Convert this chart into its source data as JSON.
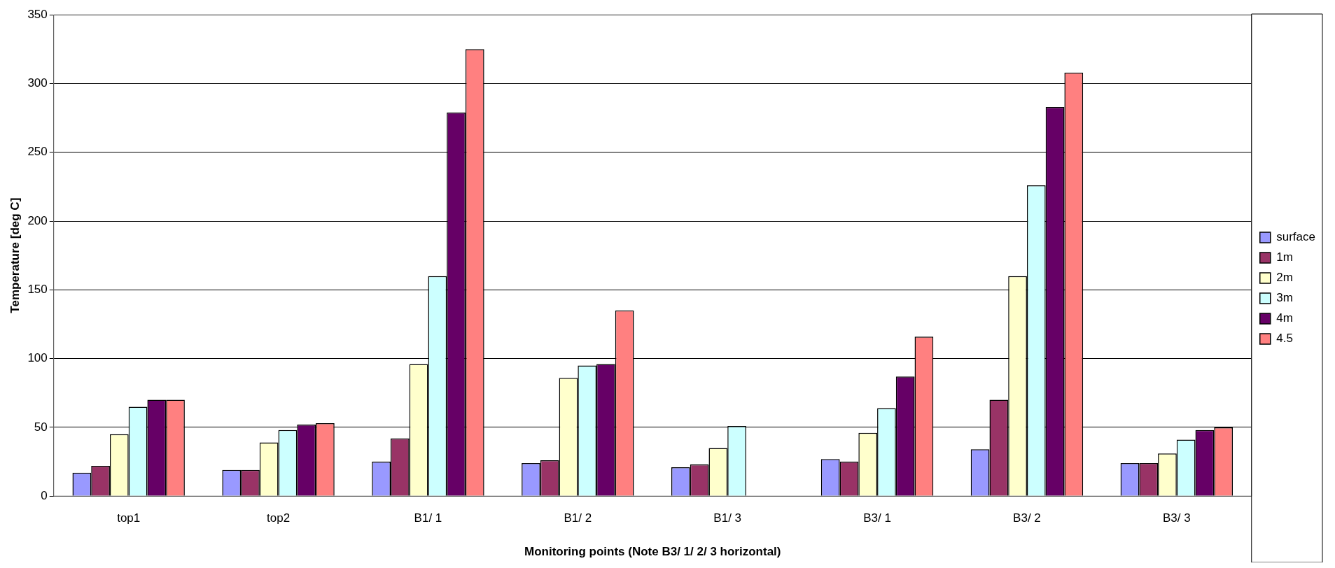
{
  "chart_data": {
    "type": "bar",
    "xlabel": "Monitoring points (Note B3/ 1/ 2/ 3 horizontal)",
    "ylabel": "Temperature [deg C]",
    "categories": [
      "top1",
      "top2",
      "B1/ 1",
      "B1/ 2",
      "B1/ 3",
      "B3/ 1",
      "B3/ 2",
      "B3/ 3"
    ],
    "series": [
      {
        "name": "surface",
        "color": "#9999ff",
        "values": [
          17,
          19,
          25,
          24,
          21,
          27,
          34,
          24
        ]
      },
      {
        "name": "1m",
        "color": "#993366",
        "values": [
          22,
          19,
          42,
          26,
          23,
          25,
          70,
          24
        ]
      },
      {
        "name": "2m",
        "color": "#ffffcc",
        "values": [
          45,
          39,
          96,
          86,
          35,
          46,
          160,
          31
        ]
      },
      {
        "name": "3m",
        "color": "#ccffff",
        "values": [
          65,
          48,
          160,
          95,
          51,
          64,
          226,
          41
        ]
      },
      {
        "name": "4m",
        "color": "#660066",
        "values": [
          70,
          52,
          279,
          96,
          null,
          87,
          283,
          48
        ]
      },
      {
        "name": "4.5",
        "color": "#ff8080",
        "values": [
          70,
          53,
          325,
          135,
          null,
          116,
          308,
          50
        ]
      }
    ],
    "ylim": [
      0,
      350
    ],
    "yticks": [
      0,
      50,
      100,
      150,
      200,
      250,
      300,
      350
    ],
    "grid": "y",
    "legend": "right"
  }
}
